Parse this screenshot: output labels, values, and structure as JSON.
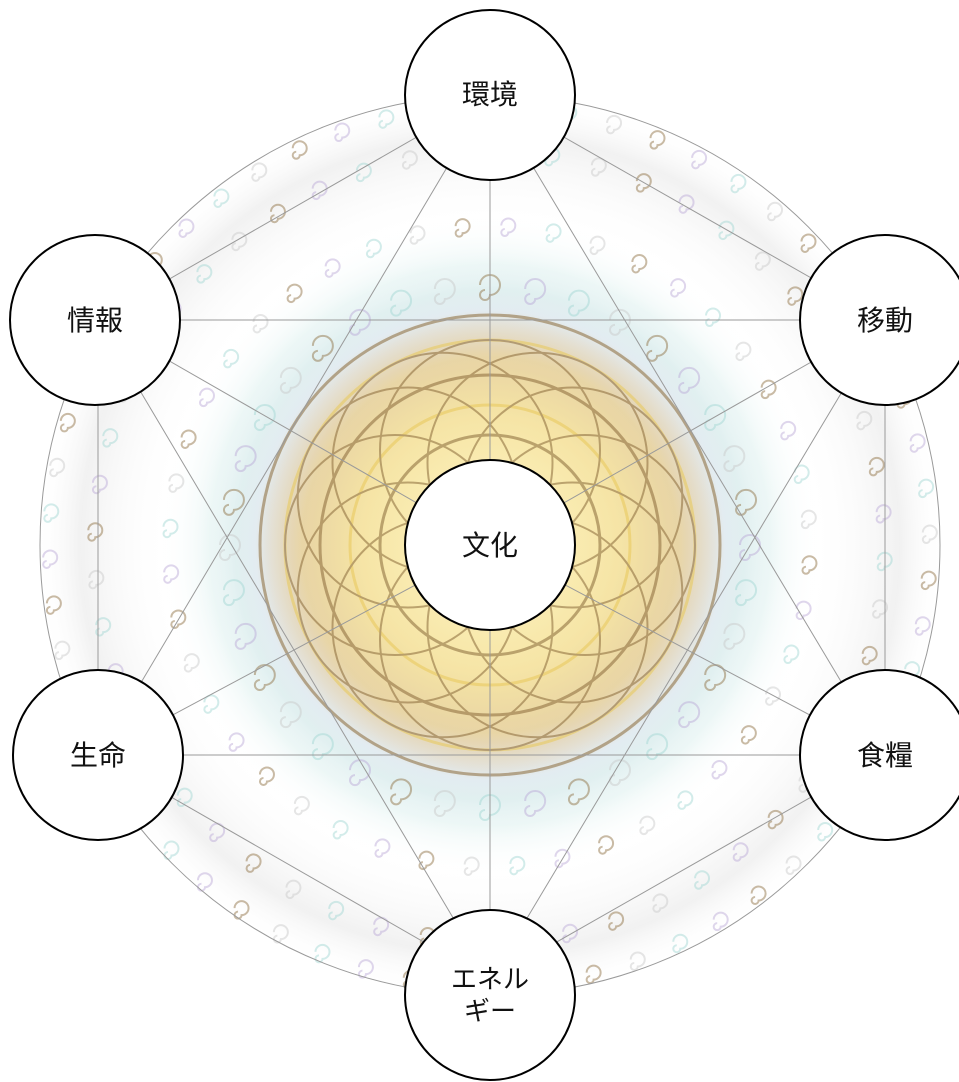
{
  "diagram": {
    "colors": {
      "line": "#9a9a9a",
      "node_fill": "#ffffff",
      "node_stroke": "#000000",
      "text": "#111111",
      "mandala_gold": "#e9c95a",
      "mandala_brown": "#8a6a3a",
      "mandala_purple": "#b9a6d6",
      "mandala_teal": "#9fd6d2",
      "swirl_grey": "#c8c8c8"
    },
    "nodes": {
      "top": {
        "label": "環境"
      },
      "upper_right": {
        "label": "移動"
      },
      "lower_right": {
        "label": "食糧"
      },
      "bottom": {
        "label_line1": "エネル",
        "label_line2": "ギー"
      },
      "lower_left": {
        "label": "生命"
      },
      "upper_left": {
        "label": "情報"
      },
      "center": {
        "label": "文化"
      }
    }
  }
}
